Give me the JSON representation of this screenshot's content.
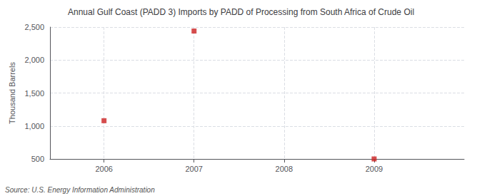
{
  "chart_data": {
    "type": "scatter",
    "title": "Annual Gulf Coast (PADD 3) Imports by PADD of Processing from South Africa of Crude Oil",
    "ylabel": "Thousand Barrels",
    "annotation": "Source: U.S. Energy Information Administration",
    "x": [
      2006,
      2007,
      2009
    ],
    "values": [
      1080,
      2440,
      500
    ],
    "color": "#cc2222",
    "marker": "square",
    "xlim": [
      2005.4,
      2010.0
    ],
    "ylim": [
      500,
      2500
    ],
    "xticks": [
      2006,
      2007,
      2008,
      2009
    ],
    "yticks": [
      500,
      {
        "value": 1000,
        "label": "1,000"
      },
      {
        "value": 1500,
        "label": "1,500"
      },
      {
        "value": 2000,
        "label": "2,000"
      },
      {
        "value": 2500,
        "label": "2,500"
      }
    ],
    "grid": true
  }
}
